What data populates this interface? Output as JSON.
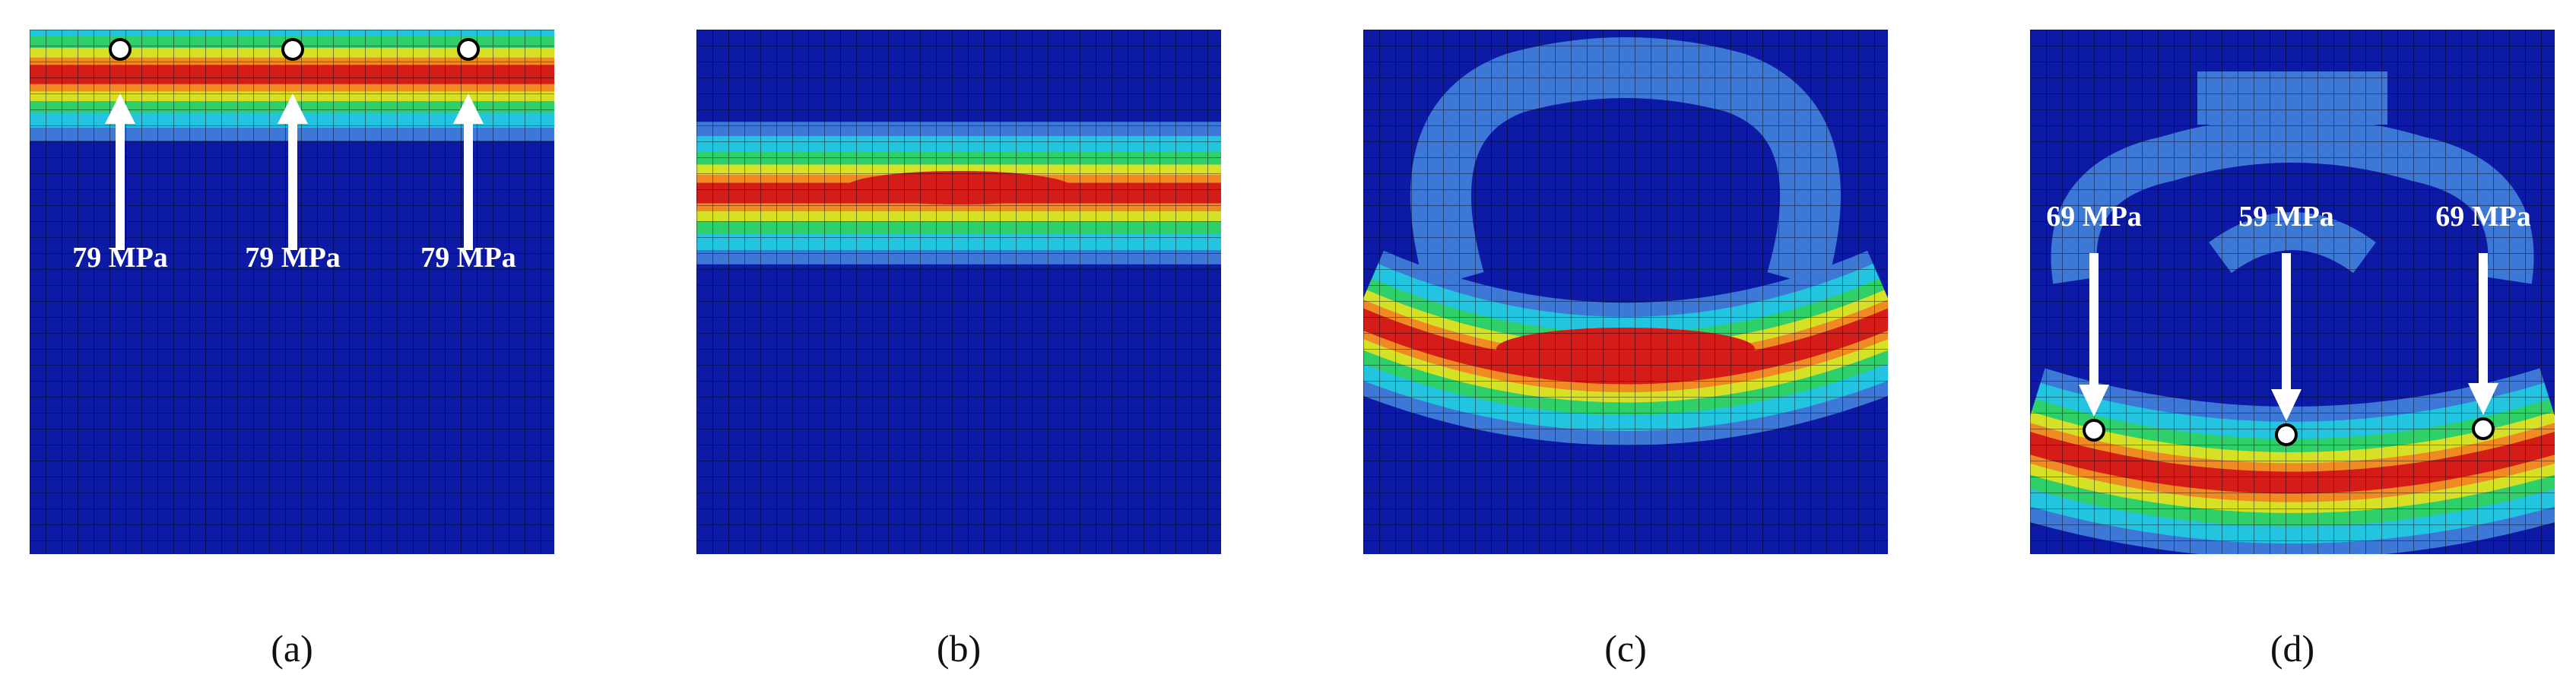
{
  "panels": [
    {
      "label": "(a)",
      "annotations": [
        "79 MPa",
        "79 MPa",
        "79 MPa"
      ]
    },
    {
      "label": "(b)"
    },
    {
      "label": "(c)"
    },
    {
      "label": "(d)",
      "annotations": [
        "69 MPa",
        "59 MPa",
        "69 MPa"
      ]
    }
  ]
}
